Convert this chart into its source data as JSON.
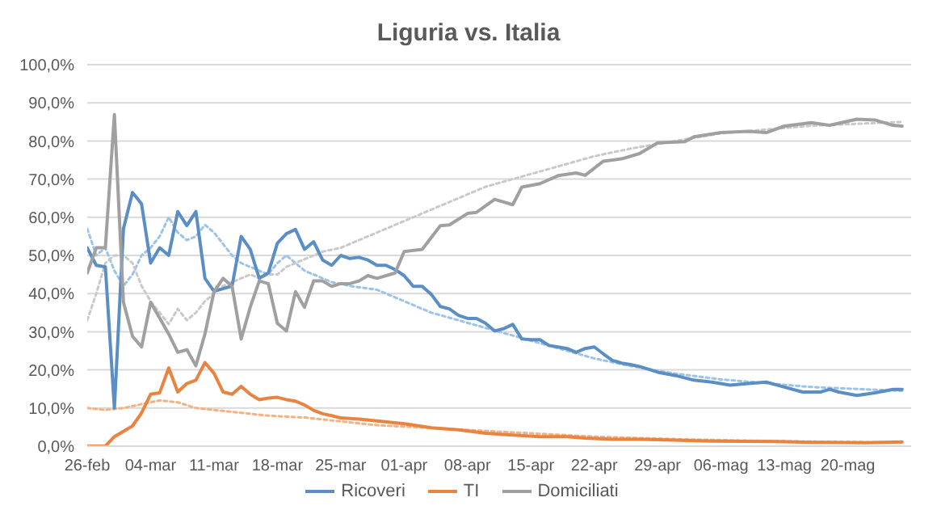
{
  "chart_data": {
    "type": "line",
    "title": "Liguria vs. Italia",
    "ylim": [
      0,
      100
    ],
    "yticks": [
      {
        "value": 0,
        "label": "0,0%"
      },
      {
        "value": 10,
        "label": "10,0%"
      },
      {
        "value": 20,
        "label": "20,0%"
      },
      {
        "value": 30,
        "label": "30,0%"
      },
      {
        "value": 40,
        "label": "40,0%"
      },
      {
        "value": 50,
        "label": "50,0%"
      },
      {
        "value": 60,
        "label": "60,0%"
      },
      {
        "value": 70,
        "label": "70,0%"
      },
      {
        "value": 80,
        "label": "80,0%"
      },
      {
        "value": 90,
        "label": "90,0%"
      },
      {
        "value": 100,
        "label": "100,0%"
      }
    ],
    "xlim": [
      "--02-26",
      "--05-27"
    ],
    "xticks": [
      {
        "value": "--02-26",
        "label": "26-feb"
      },
      {
        "value": "--03-04",
        "label": "04-mar"
      },
      {
        "value": "--03-11",
        "label": "11-mar"
      },
      {
        "value": "--03-18",
        "label": "18-mar"
      },
      {
        "value": "--03-25",
        "label": "25-mar"
      },
      {
        "value": "--04-01",
        "label": "01-apr"
      },
      {
        "value": "--04-08",
        "label": "08-apr"
      },
      {
        "value": "--04-15",
        "label": "15-apr"
      },
      {
        "value": "--04-22",
        "label": "22-apr"
      },
      {
        "value": "--04-29",
        "label": "29-apr"
      },
      {
        "value": "--05-06",
        "label": "06-mag"
      },
      {
        "value": "--05-13",
        "label": "13-mag"
      },
      {
        "value": "--05-20",
        "label": "20-mag"
      }
    ],
    "grid": "y",
    "legend": "bottom",
    "marker": "none",
    "series": [
      {
        "color": "#9dc3e6",
        "line_style": "dotted",
        "x": [
          "--02-26",
          "--02-27",
          "--02-28",
          "--02-29",
          "--03-01",
          "--03-02",
          "--03-03",
          "--03-04",
          "--03-05",
          "--03-06",
          "--03-07",
          "--03-08",
          "--03-09",
          "--03-10",
          "--03-11",
          "--03-12",
          "--03-13",
          "--03-14",
          "--03-15",
          "--03-16",
          "--03-17",
          "--03-18",
          "--03-19",
          "--03-20",
          "--03-21",
          "--03-22",
          "--03-23",
          "--03-24",
          "--03-26",
          "--03-29",
          "--04-01",
          "--04-04",
          "--04-07",
          "--04-10",
          "--04-13",
          "--04-16",
          "--04-19",
          "--04-22",
          "--04-26",
          "--05-01",
          "--05-06",
          "--05-11",
          "--05-16",
          "--05-21",
          "--05-26"
        ],
        "values": [
          57,
          50,
          52,
          46,
          42,
          45,
          50,
          52,
          55,
          60,
          56,
          54,
          55,
          58,
          56,
          53,
          50,
          48,
          47,
          46,
          45,
          48,
          50,
          48,
          46,
          45,
          44,
          43,
          42,
          41,
          38,
          35,
          33,
          31,
          29,
          27,
          25,
          23,
          21,
          19,
          17.5,
          16.5,
          15.5,
          15,
          14.5
        ]
      },
      {
        "color": "#f4b183",
        "line_style": "dotted",
        "x": [
          "--02-26",
          "--02-28",
          "--03-01",
          "--03-03",
          "--03-05",
          "--03-07",
          "--03-09",
          "--03-11",
          "--03-13",
          "--03-15",
          "--03-17",
          "--03-21",
          "--03-25",
          "--03-29",
          "--04-02",
          "--04-06",
          "--04-10",
          "--04-14",
          "--04-18",
          "--04-22",
          "--04-26",
          "--05-02",
          "--05-08",
          "--05-16",
          "--05-26"
        ],
        "values": [
          10,
          9.5,
          10,
          11,
          12,
          11.5,
          10,
          9.5,
          9,
          8.5,
          8,
          7.5,
          6.5,
          5.5,
          5,
          4.5,
          4,
          3.5,
          3,
          2.5,
          2.2,
          1.8,
          1.5,
          1.2,
          1
        ]
      },
      {
        "color": "#c9c9c9",
        "line_style": "dotted",
        "x": [
          "--02-26",
          "--02-27",
          "--02-28",
          "--02-29",
          "--03-01",
          "--03-02",
          "--03-03",
          "--03-04",
          "--03-05",
          "--03-06",
          "--03-07",
          "--03-08",
          "--03-09",
          "--03-10",
          "--03-11",
          "--03-12",
          "--03-13",
          "--03-14",
          "--03-15",
          "--03-16",
          "--03-17",
          "--03-18",
          "--03-19",
          "--03-20",
          "--03-21",
          "--03-22",
          "--03-23",
          "--03-25",
          "--03-27",
          "--03-29",
          "--04-01",
          "--04-04",
          "--04-07",
          "--04-10",
          "--04-13",
          "--04-16",
          "--04-19",
          "--04-22",
          "--04-26",
          "--05-01",
          "--05-06",
          "--05-11",
          "--05-16",
          "--05-21",
          "--05-26"
        ],
        "values": [
          33,
          40,
          48,
          50,
          50,
          48,
          42,
          38,
          35,
          32,
          36,
          33,
          35,
          38,
          40,
          42,
          43,
          44,
          45,
          44,
          45,
          45,
          47,
          48,
          49,
          50,
          51,
          52,
          54,
          56,
          59,
          62,
          65,
          68,
          70,
          72,
          74,
          76,
          78,
          80,
          82,
          83,
          84,
          84.5,
          85
        ]
      },
      {
        "name": "Ricoveri",
        "color": "#5b8ec4",
        "line_style": "solid",
        "x": [
          "--02-26",
          "--02-27",
          "--02-28",
          "--02-29",
          "--03-01",
          "--03-02",
          "--03-03",
          "--03-04",
          "--03-05",
          "--03-06",
          "--03-07",
          "--03-08",
          "--03-09",
          "--03-10",
          "--03-11",
          "--03-12",
          "--03-13",
          "--03-14",
          "--03-15",
          "--03-16",
          "--03-17",
          "--03-18",
          "--03-19",
          "--03-20",
          "--03-21",
          "--03-22",
          "--03-23",
          "--03-24",
          "--03-25",
          "--03-26",
          "--03-27",
          "--03-28",
          "--03-29",
          "--03-30",
          "--03-31",
          "--04-01",
          "--04-02",
          "--04-03",
          "--04-04",
          "--04-05",
          "--04-06",
          "--04-07",
          "--04-08",
          "--04-09",
          "--04-10",
          "--04-11",
          "--04-12",
          "--04-13",
          "--04-14",
          "--04-15",
          "--04-16",
          "--04-17",
          "--04-18",
          "--04-19",
          "--04-20",
          "--04-21",
          "--04-22",
          "--04-23",
          "--04-24",
          "--04-25",
          "--04-26",
          "--04-27",
          "--04-29",
          "--05-01",
          "--05-03",
          "--05-05",
          "--05-07",
          "--05-09",
          "--05-11",
          "--05-13",
          "--05-15",
          "--05-17",
          "--05-18",
          "--05-19",
          "--05-21",
          "--05-23",
          "--05-25",
          "--05-26"
        ],
        "values": [
          52,
          47.4,
          47,
          10,
          57,
          66.5,
          63.5,
          48,
          52,
          50,
          61.5,
          57.8,
          61.5,
          44,
          40.6,
          41.3,
          42,
          55,
          51.6,
          44,
          45.4,
          53.2,
          55.7,
          56.8,
          51.6,
          53.6,
          48.8,
          47.4,
          50,
          49.2,
          49.5,
          48.8,
          47.4,
          47.4,
          46.3,
          44.7,
          41.9,
          41.9,
          39.8,
          36.6,
          36,
          34.3,
          33.5,
          33.5,
          32.2,
          30.2,
          30.8,
          31.9,
          28.1,
          27.9,
          27.9,
          26.4,
          26,
          25.6,
          24.6,
          25.6,
          26,
          24.2,
          22.5,
          21.8,
          21.4,
          20.9,
          19.4,
          18.5,
          17.3,
          16.8,
          16,
          16.4,
          16.8,
          15.5,
          14.2,
          14.2,
          14.9,
          14.2,
          13.3,
          14,
          14.9,
          14.9
        ]
      },
      {
        "name": "TI",
        "color": "#e8843f",
        "line_style": "solid",
        "x": [
          "--02-26",
          "--02-27",
          "--02-28",
          "--02-29",
          "--03-02",
          "--03-03",
          "--03-04",
          "--03-05",
          "--03-06",
          "--03-07",
          "--03-08",
          "--03-09",
          "--03-10",
          "--03-11",
          "--03-12",
          "--03-13",
          "--03-14",
          "--03-15",
          "--03-16",
          "--03-17",
          "--03-18",
          "--03-19",
          "--03-20",
          "--03-21",
          "--03-22",
          "--03-23",
          "--03-24",
          "--03-25",
          "--03-27",
          "--03-29",
          "--04-01",
          "--04-04",
          "--04-07",
          "--04-10",
          "--04-13",
          "--04-16",
          "--04-19",
          "--04-21",
          "--04-24",
          "--04-27",
          "--04-29",
          "--05-05",
          "--05-12",
          "--05-16",
          "--05-22",
          "--05-26"
        ],
        "values": [
          0,
          0,
          0,
          2.5,
          5.3,
          8.7,
          13.6,
          14,
          20.5,
          14.2,
          16.4,
          17.3,
          21.9,
          19.1,
          14.2,
          13.6,
          15.7,
          13.6,
          12.2,
          12.6,
          12.8,
          12.2,
          11.8,
          10.8,
          9.4,
          8.5,
          8,
          7.4,
          7.1,
          6.6,
          5.9,
          4.8,
          4.3,
          3.4,
          2.9,
          2.5,
          2.5,
          2.1,
          1.8,
          1.8,
          1.7,
          1.3,
          1.2,
          1,
          0.9,
          1.1
        ]
      },
      {
        "name": "Domiciliati",
        "color": "#a0a0a0",
        "line_style": "solid",
        "x": [
          "--02-26",
          "--02-27",
          "--02-28",
          "--02-29",
          "--03-01",
          "--03-02",
          "--03-03",
          "--03-04",
          "--03-05",
          "--03-06",
          "--03-07",
          "--03-08",
          "--03-09",
          "--03-10",
          "--03-11",
          "--03-12",
          "--03-13",
          "--03-14",
          "--03-15",
          "--03-16",
          "--03-17",
          "--03-18",
          "--03-19",
          "--03-20",
          "--03-21",
          "--03-22",
          "--03-23",
          "--03-24",
          "--03-25",
          "--03-26",
          "--03-27",
          "--03-28",
          "--03-29",
          "--03-31",
          "--04-01",
          "--04-03",
          "--04-05",
          "--04-06",
          "--04-08",
          "--04-09",
          "--04-11",
          "--04-13",
          "--04-14",
          "--04-16",
          "--04-18",
          "--04-20",
          "--04-21",
          "--04-23",
          "--04-25",
          "--04-27",
          "--04-29",
          "--05-02",
          "--05-03",
          "--05-06",
          "--05-09",
          "--05-11",
          "--05-13",
          "--05-16",
          "--05-18",
          "--05-21",
          "--05-23",
          "--05-25",
          "--05-26"
        ],
        "values": [
          45.4,
          52,
          52,
          86.9,
          37.7,
          28.8,
          26,
          37.7,
          33.6,
          29.4,
          24.6,
          25.3,
          21.1,
          29.4,
          40.5,
          44,
          41.9,
          28.1,
          36.4,
          43.3,
          42.6,
          32.2,
          30.2,
          40.5,
          36.4,
          43.3,
          43.3,
          41.9,
          42.6,
          42.6,
          43.3,
          44.7,
          44,
          45.4,
          51,
          51.6,
          57.8,
          58,
          61,
          61.3,
          64.7,
          63.3,
          67.9,
          68.8,
          70.9,
          71.6,
          71,
          74.7,
          75.3,
          76.7,
          79.5,
          79.8,
          81.1,
          82.2,
          82.5,
          82.2,
          83.9,
          84.8,
          84.1,
          85.7,
          85.5,
          84.1,
          83.9
        ]
      }
    ]
  }
}
